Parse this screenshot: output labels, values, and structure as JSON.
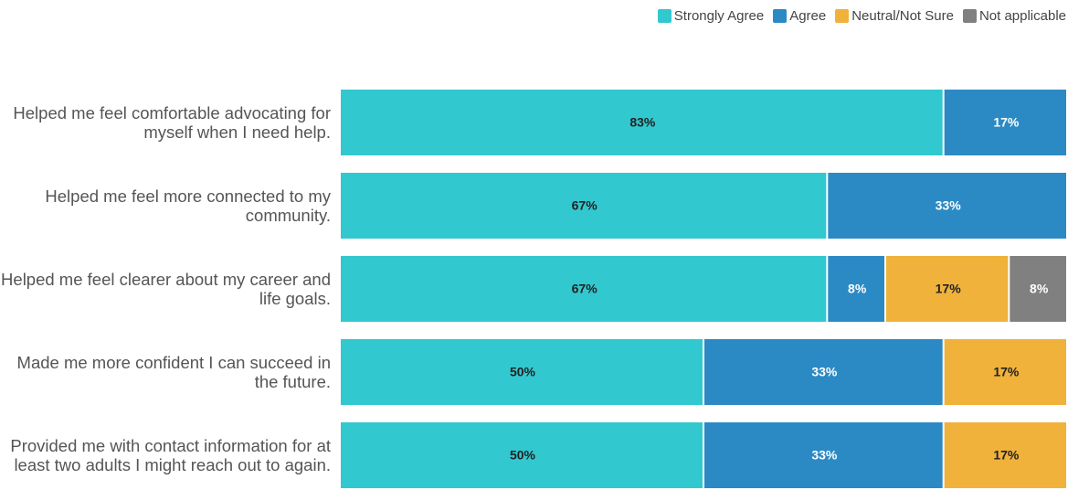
{
  "chart_data": {
    "type": "stacked-bar-horizontal",
    "categories": [
      "Helped me feel comfortable advocating for myself when I need help.",
      "Helped me feel more connected to my community.",
      "Helped me feel clearer about my career and life goals.",
      "Made me more confident I can succeed in the future.",
      "Provided me with contact information for at least two adults I might reach out to again."
    ],
    "xlim": [
      0,
      100
    ],
    "legend": "top-right",
    "series": [
      {
        "name": "Strongly Agree",
        "color": "#32c8d0",
        "label_color": "#222",
        "values": [
          83,
          67,
          67,
          50,
          50
        ],
        "value_labels": [
          "83%",
          "67%",
          "67%",
          "50%",
          "50%"
        ]
      },
      {
        "name": "Agree",
        "color": "#2b8ac4",
        "label_color": "#fff",
        "values": [
          17,
          33,
          8,
          33,
          33
        ],
        "value_labels": [
          "17%",
          "33%",
          "8%",
          "33%",
          "33%"
        ]
      },
      {
        "name": "Neutral/Not Sure",
        "color": "#f0b23a",
        "label_color": "#222",
        "values": [
          null,
          null,
          17,
          17,
          17
        ],
        "value_labels": [
          null,
          null,
          "17%",
          "17%",
          "17%"
        ]
      },
      {
        "name": "Not applicable",
        "color": "#808080",
        "label_color": "#fff",
        "values": [
          null,
          null,
          8,
          null,
          null
        ],
        "value_labels": [
          null,
          null,
          "8%",
          null,
          null
        ]
      }
    ]
  }
}
